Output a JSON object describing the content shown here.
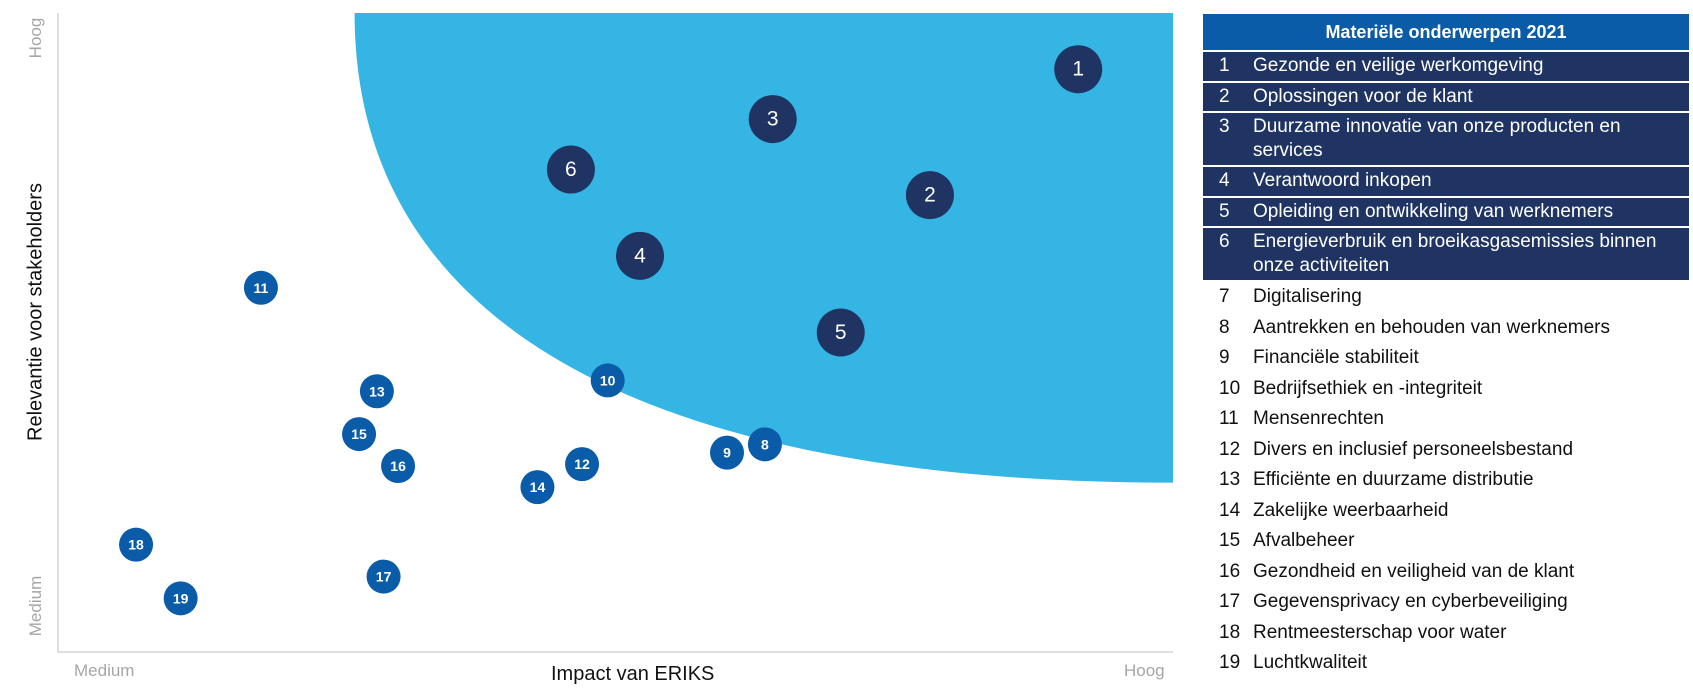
{
  "chart_data": {
    "type": "scatter",
    "xlabel": "Impact van ERIKS",
    "ylabel": "Relevantie voor stakeholders",
    "x_range_labels": [
      "Medium",
      "Hoog"
    ],
    "y_range_labels": [
      "Medium",
      "Hoog"
    ],
    "xlim": [
      0,
      100
    ],
    "ylim": [
      0,
      100
    ],
    "region_color": "#35b5e4",
    "material_color": "#1f3462",
    "other_color": "#0b5ca8",
    "points": [
      {
        "id": "1",
        "x": 91.5,
        "y": 91.2,
        "material": true
      },
      {
        "id": "2",
        "x": 78.2,
        "y": 71.5,
        "material": true
      },
      {
        "id": "3",
        "x": 64.1,
        "y": 83.4,
        "material": true
      },
      {
        "id": "4",
        "x": 52.2,
        "y": 62.0,
        "material": true
      },
      {
        "id": "5",
        "x": 70.2,
        "y": 50.0,
        "material": true
      },
      {
        "id": "6",
        "x": 46.0,
        "y": 75.5,
        "material": true
      },
      {
        "id": "7",
        "x": 0,
        "y": 0,
        "material": false,
        "hidden": true
      },
      {
        "id": "8",
        "x": 63.4,
        "y": 32.5,
        "material": false
      },
      {
        "id": "9",
        "x": 60.0,
        "y": 31.2,
        "material": false
      },
      {
        "id": "10",
        "x": 49.3,
        "y": 42.5,
        "material": false
      },
      {
        "id": "11",
        "x": 18.2,
        "y": 57.0,
        "material": false
      },
      {
        "id": "12",
        "x": 47.0,
        "y": 29.4,
        "material": false
      },
      {
        "id": "13",
        "x": 28.6,
        "y": 40.8,
        "material": false
      },
      {
        "id": "14",
        "x": 43.0,
        "y": 25.8,
        "material": false
      },
      {
        "id": "15",
        "x": 27.0,
        "y": 34.1,
        "material": false
      },
      {
        "id": "16",
        "x": 30.5,
        "y": 29.1,
        "material": false
      },
      {
        "id": "17",
        "x": 29.2,
        "y": 11.8,
        "material": false
      },
      {
        "id": "18",
        "x": 7.0,
        "y": 16.8,
        "material": false
      },
      {
        "id": "19",
        "x": 11.0,
        "y": 8.4,
        "material": false
      }
    ]
  },
  "legend": {
    "title": "Materiële onderwerpen 2021",
    "items": [
      {
        "num": "1",
        "label": "Gezonde en veilige werkomgeving",
        "material": true
      },
      {
        "num": "2",
        "label": "Oplossingen voor de klant",
        "material": true
      },
      {
        "num": "3",
        "label": "Duurzame innovatie van onze producten en services",
        "material": true
      },
      {
        "num": "4",
        "label": "Verantwoord inkopen",
        "material": true
      },
      {
        "num": "5",
        "label": "Opleiding en ontwikkeling van werknemers",
        "material": true
      },
      {
        "num": "6",
        "label": "Energieverbruik en broeikasgasemissies binnen onze activiteiten",
        "material": true
      },
      {
        "num": "7",
        "label": "Digitalisering",
        "material": false
      },
      {
        "num": "8",
        "label": "Aantrekken en behouden van werknemers",
        "material": false
      },
      {
        "num": "9",
        "label": "Financiële stabiliteit",
        "material": false
      },
      {
        "num": "10",
        "label": "Bedrijfsethiek en -integriteit",
        "material": false
      },
      {
        "num": "11",
        "label": "Mensenrechten",
        "material": false
      },
      {
        "num": "12",
        "label": "Divers en inclusief personeelsbestand",
        "material": false
      },
      {
        "num": "13",
        "label": "Efficiënte en duurzame distributie",
        "material": false
      },
      {
        "num": "14",
        "label": "Zakelijke weerbaarheid",
        "material": false
      },
      {
        "num": "15",
        "label": "Afvalbeheer",
        "material": false
      },
      {
        "num": "16",
        "label": "Gezondheid en veiligheid van de klant",
        "material": false
      },
      {
        "num": "17",
        "label": "Gegevensprivacy en cyberbeveiliging",
        "material": false
      },
      {
        "num": "18",
        "label": "Rentmeesterschap voor water",
        "material": false
      },
      {
        "num": "19",
        "label": "Luchtkwaliteit",
        "material": false
      }
    ]
  }
}
